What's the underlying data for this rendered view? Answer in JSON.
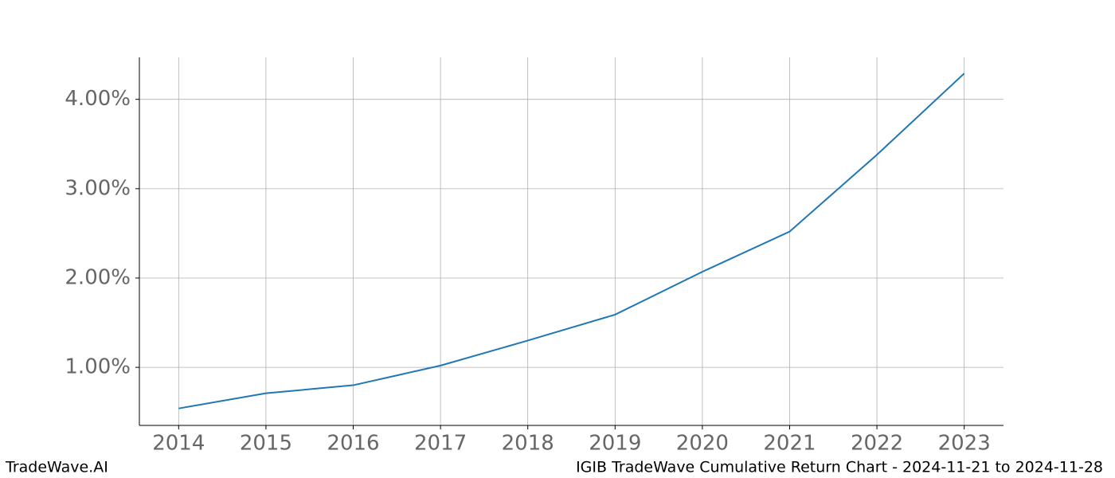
{
  "chart_data": {
    "type": "line",
    "x": [
      2014,
      2015,
      2016,
      2017,
      2018,
      2019,
      2020,
      2021,
      2022,
      2023
    ],
    "values": [
      0.54,
      0.71,
      0.8,
      1.02,
      1.3,
      1.59,
      2.07,
      2.52,
      3.38,
      4.29
    ],
    "color": "#1f77b4",
    "xlim": [
      2013.55,
      2023.45
    ],
    "xticks": [
      2014,
      2015,
      2016,
      2017,
      2018,
      2019,
      2020,
      2021,
      2022,
      2023
    ],
    "ylim": [
      0.35,
      4.47
    ],
    "yticks": [
      {
        "value": 1,
        "label": "1.00%"
      },
      {
        "value": 2,
        "label": "2.00%"
      },
      {
        "value": 3,
        "label": "3.00%"
      },
      {
        "value": 4,
        "label": "4.00%"
      }
    ],
    "grid": true,
    "watermark": "TradeWave.AI",
    "footer": "IGIB TradeWave Cumulative Return Chart - 2024-11-21 to 2024-11-28"
  }
}
